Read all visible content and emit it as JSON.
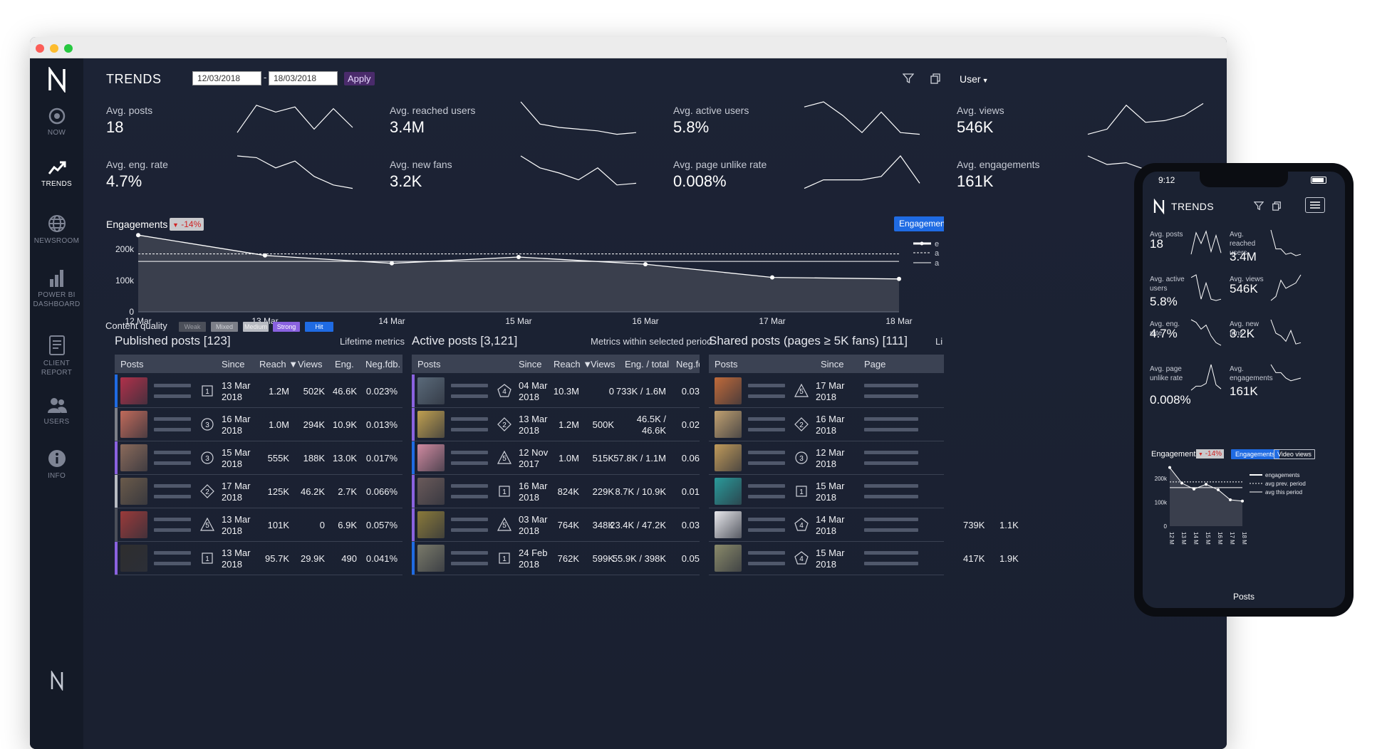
{
  "app": {
    "title": "TRENDS",
    "user_menu": "User"
  },
  "dates": {
    "from": "12/03/2018",
    "to": "18/03/2018",
    "separator": "-",
    "apply_label": "Apply"
  },
  "sidebar": {
    "items": [
      {
        "label": "NOW",
        "icon": "target-icon"
      },
      {
        "label": "TRENDS",
        "icon": "trend-icon",
        "active": true
      },
      {
        "label": "NEWSROOM",
        "icon": "globe-icon"
      },
      {
        "label": "POWER BI DASHBOARD",
        "icon": "bar-chart-icon"
      },
      {
        "label": "CLIENT REPORT",
        "icon": "document-icon"
      },
      {
        "label": "USERS",
        "icon": "users-icon"
      },
      {
        "label": "INFO",
        "icon": "info-icon"
      }
    ]
  },
  "kpis": [
    {
      "label": "Avg. posts",
      "value": "18"
    },
    {
      "label": "Avg. reached users",
      "value": "3.4M"
    },
    {
      "label": "Avg. active users",
      "value": "5.8%"
    },
    {
      "label": "Avg. views",
      "value": "546K"
    },
    {
      "label": "Avg. eng. rate",
      "value": "4.7%"
    },
    {
      "label": "Avg. new fans",
      "value": "3.2K"
    },
    {
      "label": "Avg. page unlike rate",
      "value": "0.008%"
    },
    {
      "label": "Avg. engagements",
      "value": "161K"
    }
  ],
  "engagements": {
    "label": "Engagements",
    "change": "-14%",
    "button": "Engagements",
    "legend": [
      "e",
      "a",
      "a"
    ]
  },
  "chart_data": {
    "type": "area",
    "x": [
      "12 Mar",
      "13 Mar",
      "14 Mar",
      "15 Mar",
      "16 Mar",
      "17 Mar",
      "18 Mar"
    ],
    "y_ticks": [
      "200k",
      "100k",
      "0"
    ],
    "ylim": [
      0,
      250000
    ],
    "series": [
      {
        "name": "engagements",
        "values": [
          245000,
          180000,
          155000,
          175000,
          152000,
          110000,
          105000
        ]
      },
      {
        "name": "avg prev. period",
        "values": [
          185000,
          185000,
          185000,
          185000,
          185000,
          185000,
          185000
        ]
      },
      {
        "name": "avg this period",
        "values": [
          161000,
          161000,
          161000,
          161000,
          161000,
          161000,
          161000
        ]
      }
    ]
  },
  "content_quality": {
    "label": "Content quality",
    "levels": [
      {
        "label": "Weak",
        "color": "#4b4f59",
        "text": "#9a9ca3"
      },
      {
        "label": "Mixed",
        "color": "#7c7f88",
        "text": "#cfd1d6"
      },
      {
        "label": "Medium",
        "color": "#b8bbc2",
        "text": "#f2f2f2"
      },
      {
        "label": "Strong",
        "color": "#8a62e0",
        "text": "#ffffff"
      },
      {
        "label": "Hit",
        "color": "#1f6be3",
        "text": "#ffffff"
      }
    ]
  },
  "published": {
    "title": "Published posts [123]",
    "meta": "Lifetime metrics",
    "headers": [
      "Posts",
      "Since",
      "Reach ▼",
      "Views",
      "Eng.",
      "Neg.fdb."
    ],
    "rows": [
      {
        "icon": "1",
        "shape": "square",
        "since1": "13 Mar",
        "since2": "2018",
        "reach": "1.2M",
        "views": "502K",
        "eng": "46.6K",
        "neg": "0.023%",
        "bar": "#1f6be3",
        "thumb": "#b0304a"
      },
      {
        "icon": "3",
        "shape": "circle",
        "since1": "16 Mar",
        "since2": "2018",
        "reach": "1.0M",
        "views": "294K",
        "eng": "10.9K",
        "neg": "0.013%",
        "bar": "#7c7f88",
        "thumb": "#c06a5a"
      },
      {
        "icon": "3",
        "shape": "circle",
        "since1": "15 Mar",
        "since2": "2018",
        "reach": "555K",
        "views": "188K",
        "eng": "13.0K",
        "neg": "0.017%",
        "bar": "#8a62e0",
        "thumb": "#8a6a5a"
      },
      {
        "icon": "2",
        "shape": "diamond",
        "since1": "17 Mar",
        "since2": "2018",
        "reach": "125K",
        "views": "46.2K",
        "eng": "2.7K",
        "neg": "0.066%",
        "bar": "#b8bbc2",
        "thumb": "#6a5a4a"
      },
      {
        "icon": "5",
        "shape": "triangle",
        "since1": "13 Mar",
        "since2": "2018",
        "reach": "101K",
        "views": "0",
        "eng": "6.9K",
        "neg": "0.057%",
        "bar": "#4b4f59",
        "thumb": "#9a3a3a"
      },
      {
        "icon": "1",
        "shape": "square",
        "since1": "13 Mar",
        "since2": "2018",
        "reach": "95.7K",
        "views": "29.9K",
        "eng": "490",
        "neg": "0.041%",
        "bar": "#8a62e0",
        "thumb": "#2e2e2e"
      }
    ]
  },
  "active": {
    "title": "Active posts [3,121]",
    "meta": "Metrics within selected period",
    "headers": [
      "Posts",
      "Since",
      "Reach ▼",
      "Views",
      "Eng. / total",
      "Neg.fdb"
    ],
    "rows": [
      {
        "icon": "4",
        "shape": "pentagon",
        "since1": "04 Mar",
        "since2": "2018",
        "reach": "10.3M",
        "views": "0",
        "eng": "733K / 1.6M",
        "neg": "0.03",
        "bar": "#8a62e0",
        "thumb": "#5a6a7a"
      },
      {
        "icon": "2",
        "shape": "diamond",
        "since1": "13 Mar",
        "since2": "2018",
        "reach": "1.2M",
        "views": "500K",
        "eng": "46.5K /",
        "eng2": "46.6K",
        "neg": "0.02",
        "bar": "#8a62e0",
        "thumb": "#c0a050"
      },
      {
        "icon": "5",
        "shape": "triangle",
        "since1": "12 Nov",
        "since2": "2017",
        "reach": "1.0M",
        "views": "515K",
        "eng": "57.8K / 1.1M",
        "neg": "0.06",
        "bar": "#1f6be3",
        "thumb": "#d08aa0"
      },
      {
        "icon": "1",
        "shape": "square",
        "since1": "16 Mar",
        "since2": "2018",
        "reach": "824K",
        "views": "229K",
        "eng": "8.7K / 10.9K",
        "neg": "0.01",
        "bar": "#8a62e0",
        "thumb": "#6a5a5a"
      },
      {
        "icon": "5",
        "shape": "triangle",
        "since1": "03 Mar",
        "since2": "2018",
        "reach": "764K",
        "views": "348K",
        "eng": "23.4K / 47.2K",
        "neg": "0.03",
        "bar": "#8a62e0",
        "thumb": "#8a7a3a"
      },
      {
        "icon": "1",
        "shape": "square",
        "since1": "24 Feb",
        "since2": "2018",
        "reach": "762K",
        "views": "599K",
        "eng": "55.9K / 398K",
        "neg": "0.05",
        "bar": "#1f6be3",
        "thumb": "#7a7a6a"
      }
    ]
  },
  "shared": {
    "title": "Shared posts (pages ≥ 5K fans) [111]",
    "meta": "Li",
    "headers": [
      "Posts",
      "Since",
      "Page"
    ],
    "rows": [
      {
        "icon": "5",
        "shape": "triangle",
        "since1": "17 Mar",
        "since2": "2018",
        "a": "",
        "b": "",
        "thumb": "#c06a3a"
      },
      {
        "icon": "2",
        "shape": "diamond",
        "since1": "16 Mar",
        "since2": "2018",
        "a": "",
        "b": "",
        "thumb": "#c0a070"
      },
      {
        "icon": "3",
        "shape": "circle",
        "since1": "12 Mar",
        "since2": "2018",
        "a": "",
        "b": "",
        "thumb": "#c09a5a"
      },
      {
        "icon": "1",
        "shape": "square",
        "since1": "15 Mar",
        "since2": "2018",
        "a": "",
        "b": "",
        "thumb": "#2a9a9a"
      },
      {
        "icon": "4",
        "shape": "pentagon",
        "since1": "14 Mar",
        "since2": "2018",
        "a": "739K",
        "b": "1.1K",
        "thumb": "#e8e8ec"
      },
      {
        "icon": "4",
        "shape": "pentagon",
        "since1": "15 Mar",
        "since2": "2018",
        "a": "417K",
        "b": "1.9K",
        "thumb": "#8a8a6a"
      }
    ]
  },
  "phone": {
    "time": "9:12",
    "title": "TRENDS",
    "kpis": [
      {
        "label": "Avg. posts",
        "value": "18"
      },
      {
        "label": "Avg. reached users",
        "value": "3.4M"
      },
      {
        "label": "Avg. active users",
        "value": "5.8%"
      },
      {
        "label": "Avg. views",
        "value": "546K"
      },
      {
        "label": "Avg. eng. rate",
        "value": "4.7%"
      },
      {
        "label": "Avg. new fans",
        "value": "3.2K"
      },
      {
        "label": "Avg. page unlike rate",
        "value": "0.008%"
      },
      {
        "label": "Avg. engagements",
        "value": "161K"
      }
    ],
    "eng_label": "Engagements",
    "eng_change": "-14%",
    "tab_engagements": "Engagements",
    "tab_views": "Video views",
    "legend": [
      "engagements",
      "avg prev. period",
      "avg this period"
    ],
    "y_ticks": [
      "200k",
      "100k",
      "0"
    ],
    "x_ticks": [
      "12 M",
      "13 M",
      "14 M",
      "15 M",
      "16 M",
      "17 M",
      "18 M"
    ],
    "footer": "Posts"
  }
}
